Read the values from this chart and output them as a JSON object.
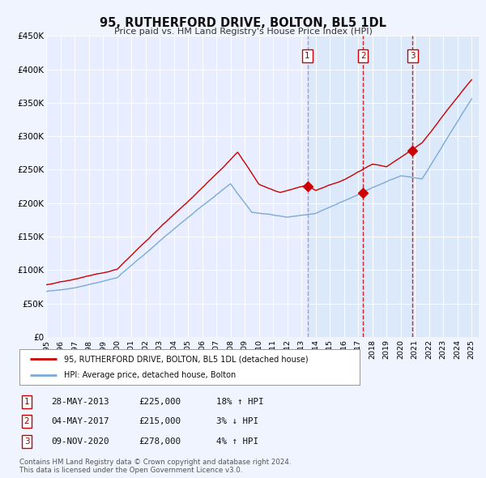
{
  "title": "95, RUTHERFORD DRIVE, BOLTON, BL5 1DL",
  "subtitle": "Price paid vs. HM Land Registry's House Price Index (HPI)",
  "ylim": [
    0,
    450000
  ],
  "yticks": [
    0,
    50000,
    100000,
    150000,
    200000,
    250000,
    300000,
    350000,
    400000,
    450000
  ],
  "ytick_labels": [
    "£0",
    "£50K",
    "£100K",
    "£150K",
    "£200K",
    "£250K",
    "£300K",
    "£350K",
    "£400K",
    "£450K"
  ],
  "background_color": "#f0f4ff",
  "plot_bg_color": "#e8eeff",
  "grid_color": "#ffffff",
  "sale_color": "#cc0000",
  "hpi_color": "#7aaad8",
  "dashed_line_color_grey": "#aaaacc",
  "dashed_line_color_red": "#cc0000",
  "marker_color": "#cc0000",
  "shade_color": "#d8e8f8",
  "sale_points": [
    {
      "year": 2013.42,
      "value": 225000,
      "label": "1"
    },
    {
      "year": 2017.34,
      "value": 215000,
      "label": "2"
    },
    {
      "year": 2020.84,
      "value": 278000,
      "label": "3"
    }
  ],
  "dashed_lines": [
    {
      "x": 2013.42,
      "style": "grey"
    },
    {
      "x": 2017.34,
      "style": "red"
    },
    {
      "x": 2020.84,
      "style": "red"
    }
  ],
  "legend_sale_label": "95, RUTHERFORD DRIVE, BOLTON, BL5 1DL (detached house)",
  "legend_hpi_label": "HPI: Average price, detached house, Bolton",
  "table_data": [
    {
      "num": "1",
      "date": "28-MAY-2013",
      "price": "£225,000",
      "change": "18% ↑ HPI"
    },
    {
      "num": "2",
      "date": "04-MAY-2017",
      "price": "£215,000",
      "change": "3% ↓ HPI"
    },
    {
      "num": "3",
      "date": "09-NOV-2020",
      "price": "£278,000",
      "change": "4% ↑ HPI"
    }
  ],
  "footnote": "Contains HM Land Registry data © Crown copyright and database right 2024.\nThis data is licensed under the Open Government Licence v3.0."
}
